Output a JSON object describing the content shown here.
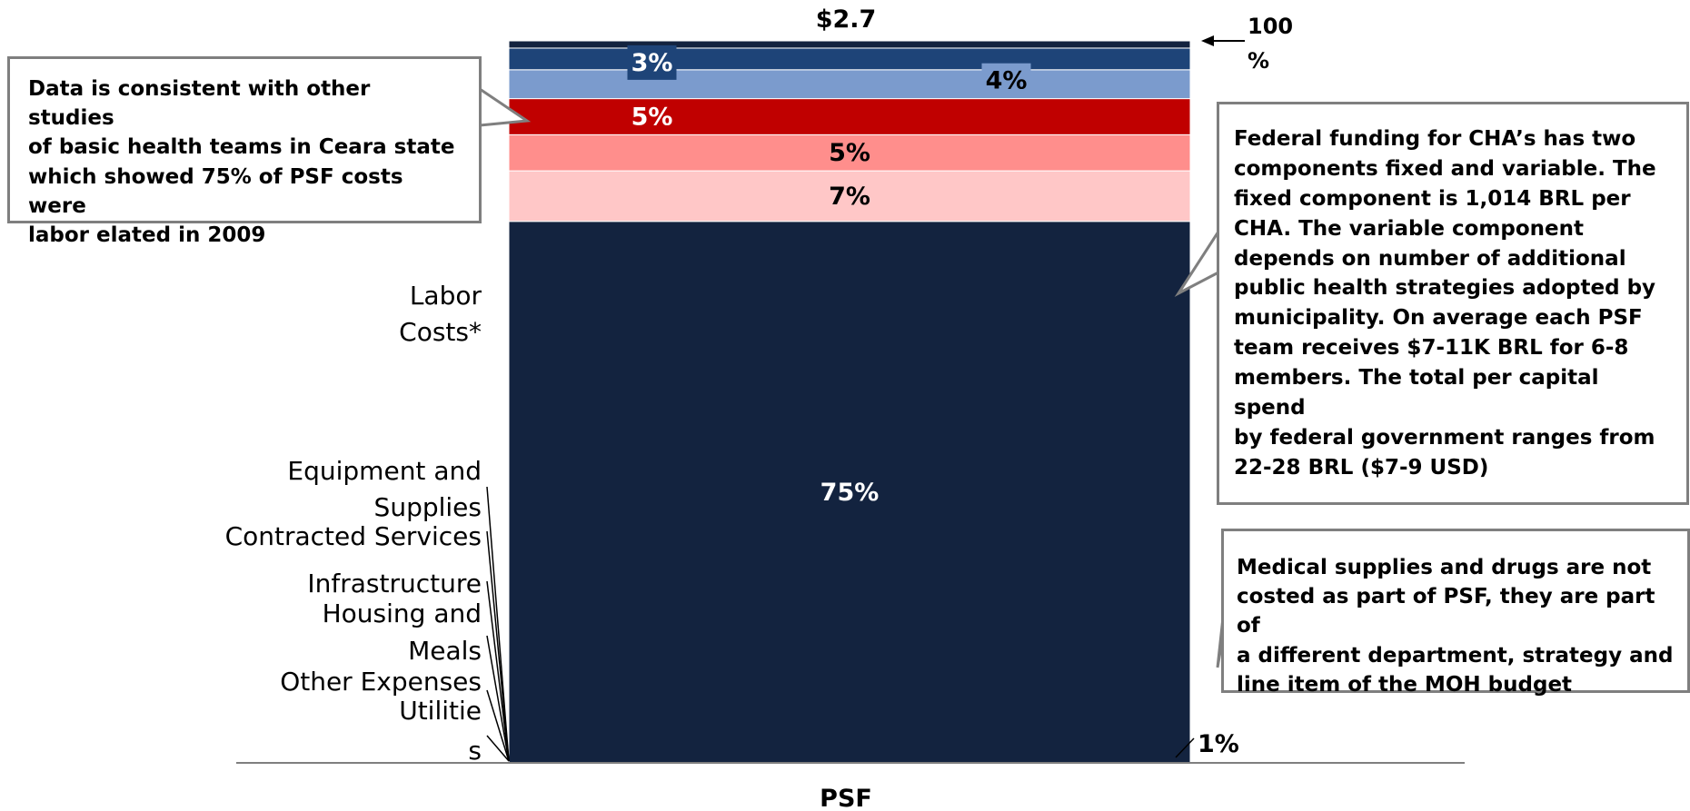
{
  "chart_data": {
    "type": "bar",
    "stacked": true,
    "normalized": true,
    "categories": [
      "PSF"
    ],
    "total_label": "$2.7",
    "top_marker": "100 %",
    "series": [
      {
        "name": "Labor Costs*",
        "value": 75,
        "label": "75%",
        "color": "#13233f"
      },
      {
        "name": "Equipment and Supplies",
        "value": 7,
        "label": "7%",
        "color": "#ffc7c7"
      },
      {
        "name": "Contracted Services",
        "value": 5,
        "label": "5%",
        "color": "#ff8e8c"
      },
      {
        "name": "Infrastructure",
        "value": 5,
        "label": "5%",
        "color": "#c00000"
      },
      {
        "name": "Housing and Meals",
        "value": 4,
        "label": "4%",
        "color": "#7b9bcd"
      },
      {
        "name": "Other Expenses",
        "value": 3,
        "label": "3%",
        "color": "#1e4478"
      },
      {
        "name": "Utilities",
        "value": 1,
        "label": "1%",
        "color": "#13233f"
      }
    ],
    "category_labels": [
      [
        "Labor",
        "Costs*"
      ],
      [
        "Equipment and",
        "Supplies"
      ],
      [
        "Contracted Services"
      ],
      [
        "Infrastructure"
      ],
      [
        "Housing and"
      ],
      [
        "Meals"
      ],
      [
        "Other Expenses"
      ],
      [
        "Utilitie"
      ],
      [
        "s"
      ]
    ],
    "xlabel": "PSF"
  },
  "callouts": {
    "left": {
      "lines": [
        "Data is consistent with other studies",
        "of basic health teams in Ceara state",
        "which showed 75% of PSF costs were",
        "labor elated in 2009"
      ]
    },
    "right_top": {
      "lines": [
        "Federal funding for CHA’s has two",
        "components fixed and variable.  The",
        "fixed component is 1,014 BRL per",
        "CHA.  The variable component",
        "depends on number of additional",
        "public health strategies adopted by",
        "municipality.  On average each PSF",
        "team receives $7-11K BRL for 6-8",
        "members. The total per capital spend",
        "by federal government ranges from",
        "22-28 BRL ($7-9 USD)"
      ]
    },
    "right_bottom": {
      "lines": [
        "Medical supplies and drugs are not",
        "costed as part of PSF, they are part of",
        "a different department, strategy and",
        "line item of the MOH budget"
      ]
    }
  },
  "colors": {
    "bar_dark": "#13233f",
    "callout_border": "#7f7f7f",
    "axis": "#7f7f7f"
  }
}
